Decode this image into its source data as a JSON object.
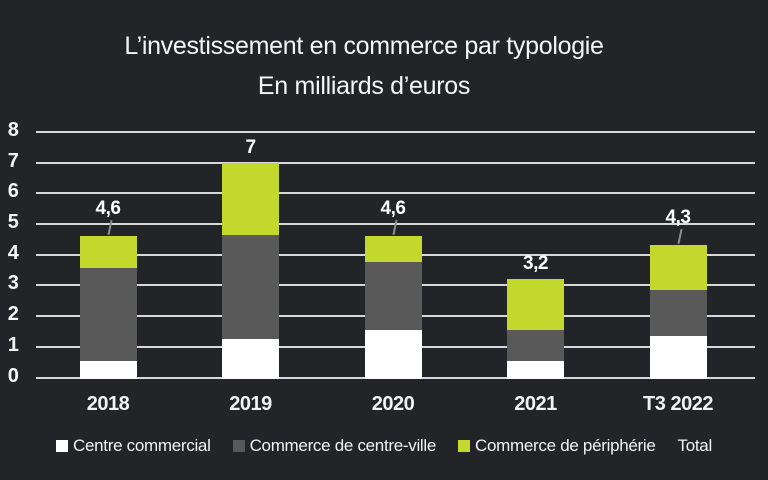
{
  "title": "L’investissement en commerce par typologie",
  "subtitle": "En milliards d’euros",
  "colors": {
    "background": "#232428",
    "grid": "#d8d8d8",
    "text": "#f5f5f5",
    "leader_line": "#8f8f8f"
  },
  "chart_data": {
    "type": "bar",
    "stacked": true,
    "title": "L’investissement en commerce par typologie",
    "subtitle": "En milliards d’euros",
    "unit": "milliards d’euros",
    "categories": [
      "2018",
      "2019",
      "2020",
      "2021",
      "T3 2022"
    ],
    "series": [
      {
        "name": "Centre commercial",
        "color": "#ffffff",
        "values": [
          0.6,
          1.3,
          1.6,
          0.6,
          1.4
        ]
      },
      {
        "name": "Commerce de centre-ville",
        "color": "#595959",
        "values": [
          3.0,
          3.4,
          2.2,
          1.0,
          1.5
        ]
      },
      {
        "name": "Commerce de périphérie",
        "color": "#c3d82d",
        "values": [
          1.0,
          2.3,
          0.8,
          1.6,
          1.4
        ]
      }
    ],
    "totals": [
      4.6,
      7,
      4.6,
      3.2,
      4.3
    ],
    "total_labels": [
      "4,6",
      "7",
      "4,6",
      "3,2",
      "4,3"
    ],
    "total_label_leader_line": [
      true,
      false,
      true,
      false,
      true
    ],
    "ylim": [
      0,
      8
    ],
    "ytick_step": 1,
    "yticks": [
      0,
      1,
      2,
      3,
      4,
      5,
      6,
      7,
      8
    ],
    "grid": true,
    "legend_position": "bottom"
  },
  "legend": {
    "items": [
      {
        "label": "Centre commercial",
        "color": "#ffffff"
      },
      {
        "label": "Commerce de centre-ville",
        "color": "#595959"
      },
      {
        "label": "Commerce de périphérie",
        "color": "#c3d82d"
      },
      {
        "label": "Total",
        "color": null
      }
    ]
  }
}
